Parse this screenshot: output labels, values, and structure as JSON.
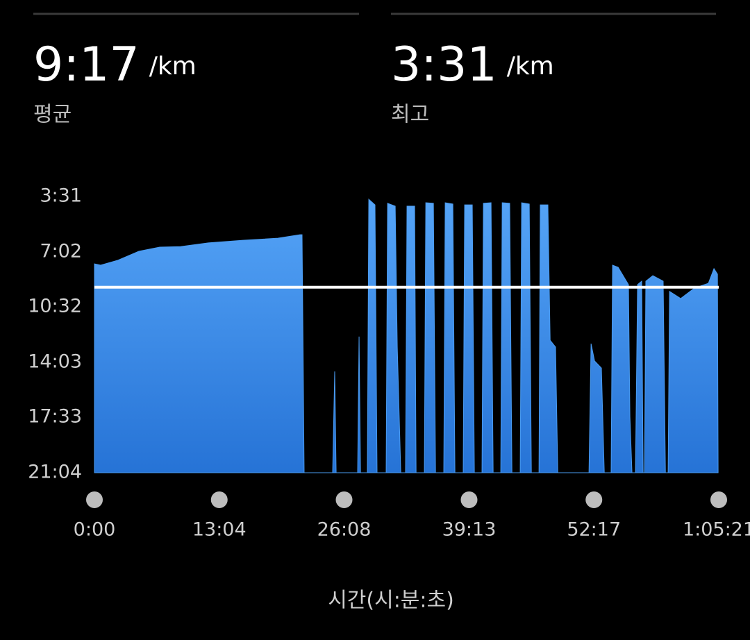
{
  "header": {
    "average": {
      "value": "9:17",
      "unit": "/km",
      "label": "평균"
    },
    "best": {
      "value": "3:31",
      "unit": "/km",
      "label": "최고"
    }
  },
  "chart_data": {
    "type": "area",
    "x_label": "시간(시:분:초)",
    "color": "#4a9bf0",
    "average_line": {
      "value": 557,
      "color": "#ffffff"
    },
    "xlim": [
      0,
      3921
    ],
    "xticks": [
      {
        "value": 0,
        "label": "0:00"
      },
      {
        "value": 784,
        "label": "13:04"
      },
      {
        "value": 1568,
        "label": "26:08"
      },
      {
        "value": 2353,
        "label": "39:13"
      },
      {
        "value": 3137,
        "label": "52:17"
      },
      {
        "value": 3921,
        "label": "1:05:21"
      }
    ],
    "ylim": [
      1264,
      211
    ],
    "yticks": [
      {
        "value": 211,
        "label": "3:31"
      },
      {
        "value": 422,
        "label": "7:02"
      },
      {
        "value": 632,
        "label": "10:32"
      },
      {
        "value": 843,
        "label": "14:03"
      },
      {
        "value": 1053,
        "label": "17:33"
      },
      {
        "value": 1264,
        "label": "21:04"
      }
    ],
    "x": [
      0,
      39,
      148,
      279,
      410,
      541,
      715,
      933,
      1152,
      1291,
      1304,
      1317,
      1496,
      1509,
      1518,
      1653,
      1662,
      1671,
      1714,
      1723,
      1762,
      1775,
      1832,
      1841,
      1889,
      1902,
      1924,
      1954,
      1963,
      2011,
      2020,
      2072,
      2081,
      2129,
      2142,
      2194,
      2203,
      2251,
      2264,
      2316,
      2325,
      2373,
      2386,
      2434,
      2443,
      2491,
      2504,
      2552,
      2561,
      2608,
      2622,
      2674,
      2683,
      2731,
      2744,
      2792,
      2800,
      2848,
      2862,
      2896,
      2910,
      3106,
      3119,
      3141,
      3184,
      3202,
      3245,
      3254,
      3289,
      3354,
      3363,
      3376,
      3398,
      3411,
      3437,
      3446,
      3455,
      3463,
      3507,
      3572,
      3586,
      3603,
      3612,
      3682,
      3769,
      3856,
      3891,
      3913,
      3917
    ],
    "values": [
      468,
      473,
      454,
      420,
      404,
      402,
      388,
      378,
      370,
      357,
      357,
      1264,
      1264,
      878,
      1264,
      1264,
      745,
      1264,
      1264,
      222,
      243,
      1264,
      1264,
      237,
      248,
      785,
      1264,
      1264,
      248,
      248,
      1264,
      1264,
      235,
      237,
      1264,
      1264,
      235,
      240,
      1264,
      1264,
      243,
      243,
      1264,
      1264,
      237,
      235,
      1264,
      1264,
      235,
      237,
      1264,
      1264,
      235,
      240,
      1264,
      1264,
      243,
      243,
      759,
      785,
      1264,
      1264,
      772,
      838,
      865,
      1264,
      1264,
      473,
      481,
      547,
      1050,
      1264,
      1264,
      547,
      534,
      1264,
      1264,
      534,
      513,
      534,
      1264,
      1264,
      573,
      600,
      560,
      542,
      486,
      507,
      1264
    ]
  }
}
